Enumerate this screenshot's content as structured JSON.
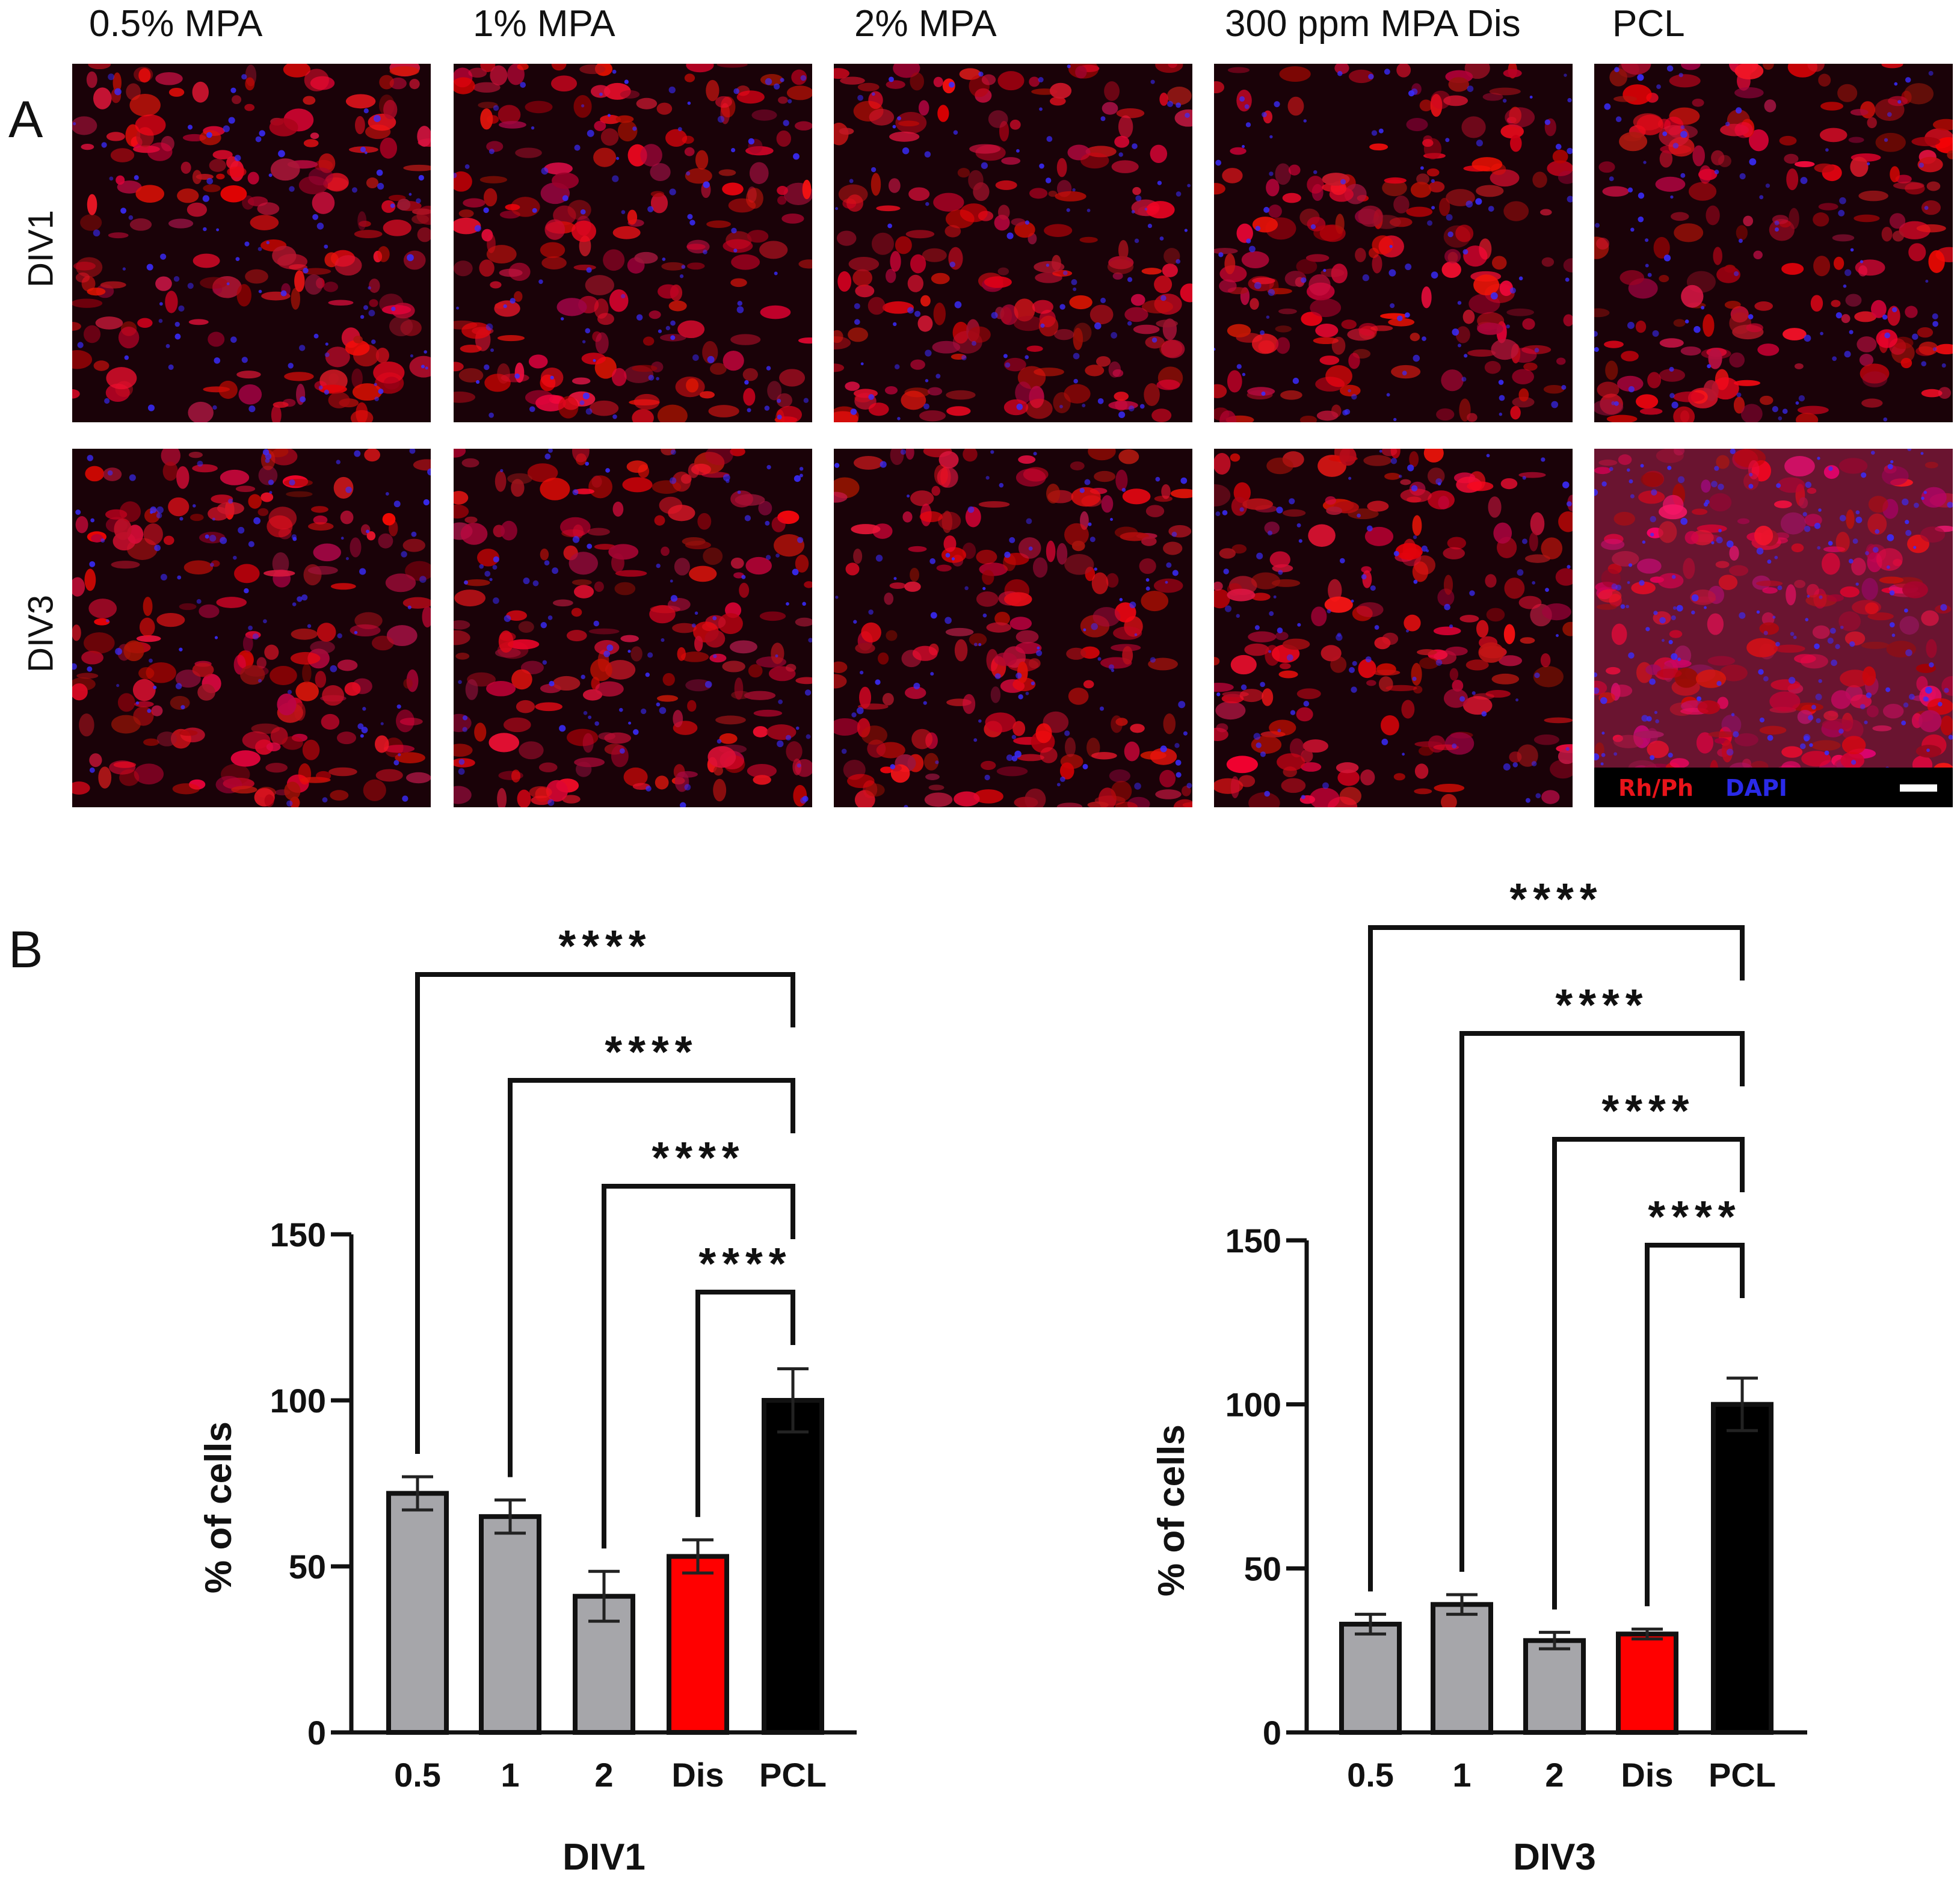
{
  "panel_labels": {
    "a": "A",
    "b": "B"
  },
  "columns": [
    "0.5% MPA",
    "1% MPA",
    "2% MPA",
    "300 ppm MPA Dis",
    "PCL"
  ],
  "rows": [
    "DIV1",
    "DIV3"
  ],
  "stain_legend": {
    "red": "Rh/Ph",
    "blue": "DAPI"
  },
  "colors": {
    "mpa": "#a6a6aa",
    "dis": "#ff0000",
    "pcl": "#000000",
    "stain_red": "#e8141a",
    "stain_blue": "#2a2ae8"
  },
  "chart_data": [
    {
      "type": "bar",
      "title": "",
      "xlabel": "DIV1",
      "ylabel": "% of cells",
      "categories": [
        "0.5",
        "1",
        "2",
        "Dis",
        "PCL"
      ],
      "values": [
        72,
        65,
        41,
        53,
        100
      ],
      "errors": [
        5,
        5,
        7.5,
        5,
        9.5
      ],
      "colors": [
        "#a6a6aa",
        "#a6a6aa",
        "#a6a6aa",
        "#ff0000",
        "#000000"
      ],
      "ylim": [
        0,
        150
      ],
      "yticks": [
        "0",
        "50",
        "100",
        "150"
      ],
      "grid": false,
      "significance": [
        {
          "from": "0.5",
          "to": "PCL",
          "label": "****"
        },
        {
          "from": "1",
          "to": "PCL",
          "label": "****"
        },
        {
          "from": "2",
          "to": "PCL",
          "label": "****"
        },
        {
          "from": "Dis",
          "to": "PCL",
          "label": "****"
        }
      ]
    },
    {
      "type": "bar",
      "title": "",
      "xlabel": "DIV3",
      "ylabel": "% of cells",
      "categories": [
        "0.5",
        "1",
        "2",
        "Dis",
        "PCL"
      ],
      "values": [
        33,
        39,
        28,
        30,
        100
      ],
      "errors": [
        3,
        3,
        2.5,
        1.5,
        8
      ],
      "colors": [
        "#a6a6aa",
        "#a6a6aa",
        "#a6a6aa",
        "#ff0000",
        "#000000"
      ],
      "ylim": [
        0,
        150
      ],
      "yticks": [
        "0",
        "50",
        "100",
        "150"
      ],
      "grid": false,
      "significance": [
        {
          "from": "0.5",
          "to": "PCL",
          "label": "****"
        },
        {
          "from": "1",
          "to": "PCL",
          "label": "****"
        },
        {
          "from": "2",
          "to": "PCL",
          "label": "****"
        },
        {
          "from": "Dis",
          "to": "PCL",
          "label": "****"
        }
      ]
    }
  ]
}
